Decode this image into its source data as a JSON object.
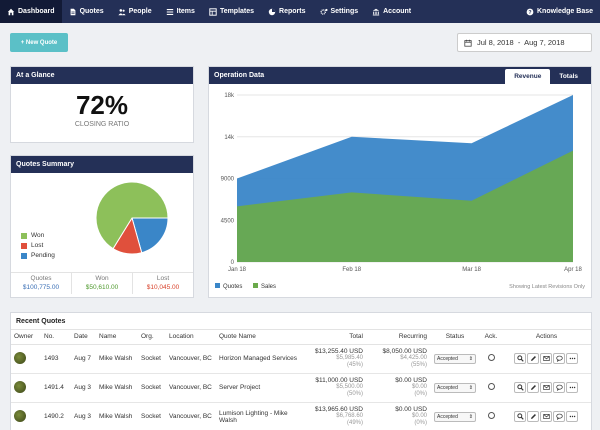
{
  "nav": {
    "items": [
      {
        "label": "Dashboard",
        "icon": "home-icon",
        "active": true
      },
      {
        "label": "Quotes",
        "icon": "document-icon"
      },
      {
        "label": "People",
        "icon": "people-icon"
      },
      {
        "label": "Items",
        "icon": "list-icon"
      },
      {
        "label": "Templates",
        "icon": "template-icon"
      },
      {
        "label": "Reports",
        "icon": "pie-icon"
      },
      {
        "label": "Settings",
        "icon": "gears-icon"
      },
      {
        "label": "Account",
        "icon": "bank-icon"
      }
    ],
    "right": {
      "label": "Knowledge Base",
      "icon": "help-icon"
    }
  },
  "toolbar": {
    "new_quote": "+ New Quote",
    "date_range": "Jul 8, 2018  -  Aug 7, 2018"
  },
  "glance": {
    "title": "At a Glance",
    "value": "72%",
    "label": "CLOSING RATIO"
  },
  "summary": {
    "title": "Quotes Summary",
    "legend": [
      {
        "label": "Won",
        "color": "#8dc05a"
      },
      {
        "label": "Lost",
        "color": "#e0503c"
      },
      {
        "label": "Pending",
        "color": "#3a86c8"
      }
    ],
    "pie": [
      {
        "name": "Won",
        "value": 50610,
        "color": "#8dc05a"
      },
      {
        "name": "Lost",
        "value": 10045,
        "color": "#e0503c"
      },
      {
        "name": "Pending",
        "value": 15800,
        "color": "#3a86c8"
      }
    ],
    "stats": [
      {
        "label": "Quotes",
        "value": "$100,775.00",
        "color": "#3a6fb5"
      },
      {
        "label": "Won",
        "value": "$50,610.00",
        "color": "#4f9a2e"
      },
      {
        "label": "Lost",
        "value": "$10,045.00",
        "color": "#d9432c"
      }
    ]
  },
  "operation": {
    "title": "Operation Data",
    "tabs": [
      {
        "label": "Revenue",
        "active": true
      },
      {
        "label": "Totals"
      }
    ],
    "footer_note": "Showing Latest Revisions Only"
  },
  "chart_data": {
    "type": "area",
    "categories": [
      "Jan 18",
      "Feb 18",
      "Mar 18",
      "Apr 18"
    ],
    "x": [
      0,
      1.12,
      2.29,
      3.28
    ],
    "series": [
      {
        "name": "Quotes",
        "color": "#3a86c8",
        "values": [
          9000,
          13500,
          12800,
          18000
        ]
      },
      {
        "name": "Sales",
        "color": "#6aaa4b",
        "values": [
          6000,
          7500,
          6600,
          12000
        ]
      }
    ],
    "yticks": [
      "18k",
      "14k",
      "9000",
      "4500",
      "0"
    ],
    "ylim": [
      0,
      18000
    ],
    "legend": "bottom-left"
  },
  "recent": {
    "title": "Recent Quotes",
    "columns": [
      "Owner",
      "No.",
      "Date",
      "Name",
      "Org.",
      "Location",
      "Quote Name",
      "Total",
      "Recurring",
      "Status",
      "Ack.",
      "Actions"
    ],
    "rows": [
      {
        "no": "1493",
        "date": "Aug 7",
        "name": "Mike Walsh",
        "org": "Socket",
        "location": "Vancouver, BC",
        "quote": "Horizon Managed Services",
        "total": "$13,255.40 USD",
        "total_sub1": "$5,985.40",
        "total_sub2": "(45%)",
        "rec": "$8,050.00 USD",
        "rec_sub1": "$4,425.00",
        "rec_sub2": "(55%)",
        "status": "Accepted"
      },
      {
        "no": "1491.4",
        "date": "Aug 3",
        "name": "Mike Walsh",
        "org": "Socket",
        "location": "Vancouver, BC",
        "quote": "Server Project",
        "total": "$11,000.00 USD",
        "total_sub1": "$5,500.00",
        "total_sub2": "(50%)",
        "rec": "$0.00 USD",
        "rec_sub1": "$0.00",
        "rec_sub2": "(0%)",
        "status": "Accepted"
      },
      {
        "no": "1490.2",
        "date": "Aug 3",
        "name": "Mike Walsh",
        "org": "Socket",
        "location": "Vancouver, BC",
        "quote": "Lumison Lighting - Mike Walsh",
        "total": "$13,965.60 USD",
        "total_sub1": "$6,768.60",
        "total_sub2": "(49%)",
        "rec": "$0.00 USD",
        "rec_sub1": "$0.00",
        "rec_sub2": "(0%)",
        "status": "Accepted"
      }
    ]
  }
}
